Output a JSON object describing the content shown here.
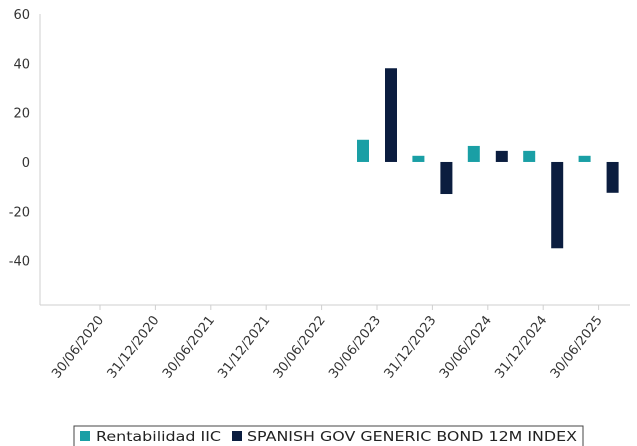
{
  "chart_data": {
    "type": "bar",
    "categories": [
      "30/06/2020",
      "31/12/2020",
      "30/06/2021",
      "31/12/2021",
      "30/06/2022",
      "30/06/2023",
      "31/12/2023",
      "30/06/2024",
      "31/12/2024",
      "30/06/2025"
    ],
    "series": [
      {
        "name": "Rentabilidad IIC",
        "color": "#1a9fa5",
        "values": [
          null,
          null,
          null,
          null,
          null,
          9,
          2.5,
          6.5,
          4.5,
          2.5
        ]
      },
      {
        "name": "SPANISH GOV GENERIC BOND 12M INDEX",
        "color": "#0b1d3f",
        "values": [
          null,
          null,
          null,
          null,
          null,
          38,
          -13,
          4.5,
          -35,
          -12.5
        ]
      }
    ],
    "yticks": [
      60,
      40,
      20,
      0,
      -20,
      -40
    ],
    "ylim": [
      -58,
      60
    ],
    "grid": false,
    "legend_position": "bottom-center"
  }
}
